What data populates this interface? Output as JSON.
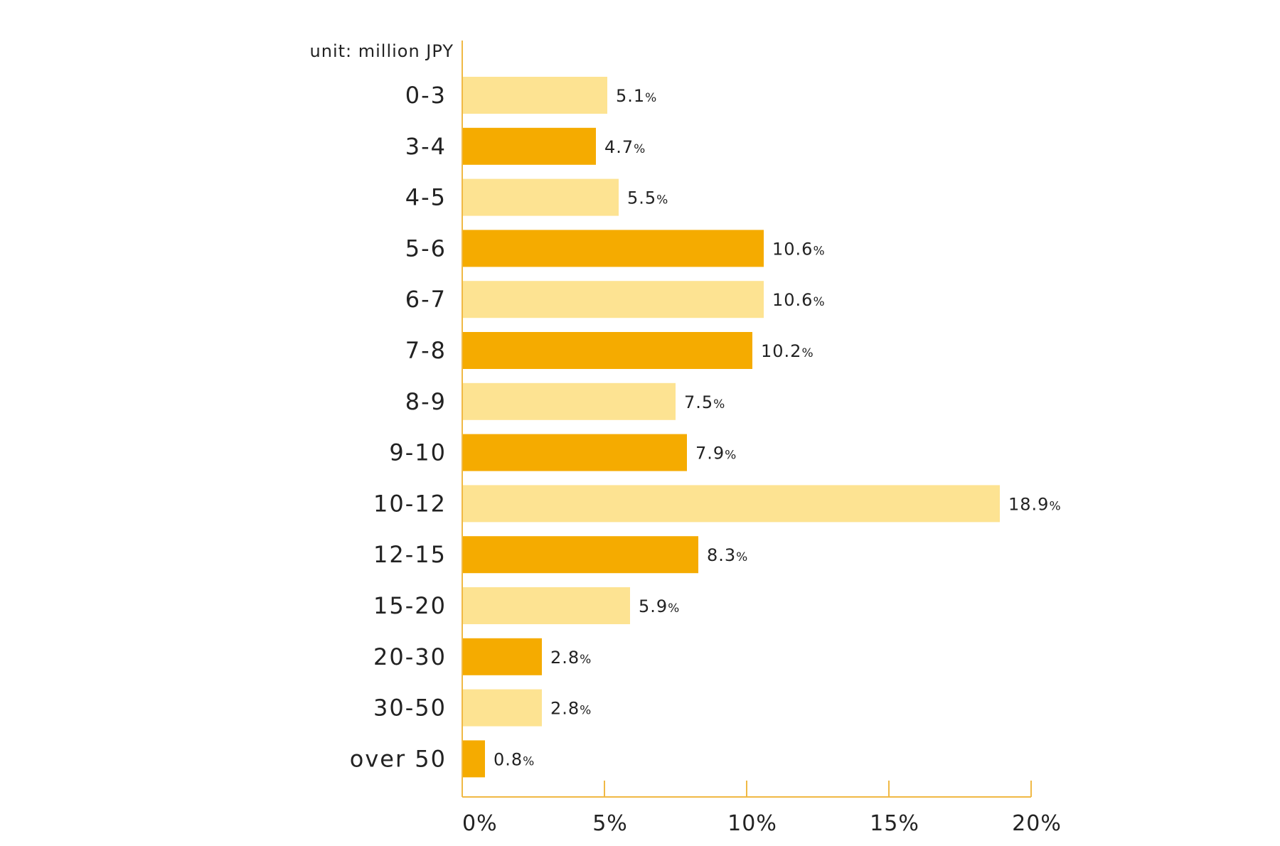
{
  "chart_data": {
    "type": "bar",
    "orientation": "horizontal",
    "unit_label": "unit: million JPY",
    "categories": [
      "0-3",
      "3-4",
      "4-5",
      "5-6",
      "6-7",
      "7-8",
      "8-9",
      "9-10",
      "10-12",
      "12-15",
      "15-20",
      "20-30",
      "30-50",
      "over 50"
    ],
    "values": [
      5.1,
      4.7,
      5.5,
      10.6,
      10.6,
      10.2,
      7.5,
      7.9,
      18.9,
      8.3,
      5.9,
      2.8,
      2.8,
      0.8
    ],
    "value_suffix": "%",
    "xlim": [
      0,
      20
    ],
    "xticks": [
      0,
      5,
      10,
      15,
      20
    ],
    "xtick_labels": [
      "0%",
      "5%",
      "10%",
      "15%",
      "20%"
    ],
    "grid": false,
    "legend": "none",
    "colors": {
      "bar_light": "#fde392",
      "bar_dark": "#f5ab00",
      "axis": "#f0b945",
      "text": "#222222"
    }
  }
}
